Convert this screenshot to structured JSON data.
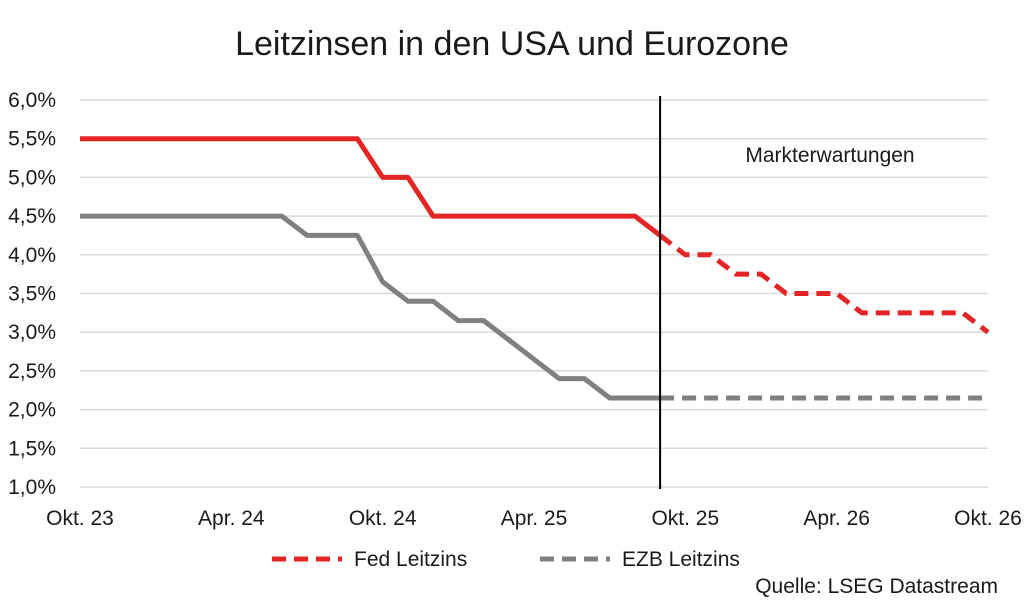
{
  "chart_data": {
    "type": "line",
    "title": "Leitzinsen in den USA und Eurozone",
    "xlabel": "",
    "ylabel": "",
    "x_ticks": [
      "Okt. 23",
      "Apr. 24",
      "Okt. 24",
      "Apr. 25",
      "Okt. 25",
      "Apr. 26",
      "Okt. 26"
    ],
    "y_ticks": [
      "1,0%",
      "1,5%",
      "2,0%",
      "2,5%",
      "3,0%",
      "3,5%",
      "4,0%",
      "4,5%",
      "5,0%",
      "5,5%",
      "6,0%"
    ],
    "ylim": [
      1.0,
      6.0
    ],
    "xlim": [
      "2023-10",
      "2026-10"
    ],
    "grid": "horizontal",
    "legend_position": "bottom",
    "annotation": {
      "label": "Markterwartungen",
      "x": "2025-09"
    },
    "series": [
      {
        "name": "Fed Leitzins",
        "color": "#e32526",
        "points": [
          {
            "x": "2023-10",
            "y": 5.5
          },
          {
            "x": "2024-09",
            "y": 5.5
          },
          {
            "x": "2024-10",
            "y": 5.0
          },
          {
            "x": "2024-11",
            "y": 5.0
          },
          {
            "x": "2024-12",
            "y": 4.5
          },
          {
            "x": "2025-08",
            "y": 4.5
          },
          {
            "x": "2025-09",
            "y": 4.25
          },
          {
            "x": "2025-10",
            "y": 4.0
          },
          {
            "x": "2025-11",
            "y": 4.0
          },
          {
            "x": "2025-12",
            "y": 3.75
          },
          {
            "x": "2026-01",
            "y": 3.75
          },
          {
            "x": "2026-02",
            "y": 3.5
          },
          {
            "x": "2026-04",
            "y": 3.5
          },
          {
            "x": "2026-05",
            "y": 3.25
          },
          {
            "x": "2026-09",
            "y": 3.25
          },
          {
            "x": "2026-10",
            "y": 3.0
          }
        ]
      },
      {
        "name": "EZB Leitzins",
        "color": "#808080",
        "points": [
          {
            "x": "2023-10",
            "y": 4.5
          },
          {
            "x": "2024-06",
            "y": 4.5
          },
          {
            "x": "2024-07",
            "y": 4.25
          },
          {
            "x": "2024-09",
            "y": 4.25
          },
          {
            "x": "2024-10",
            "y": 3.65
          },
          {
            "x": "2024-11",
            "y": 3.4
          },
          {
            "x": "2024-12",
            "y": 3.4
          },
          {
            "x": "2025-01",
            "y": 3.15
          },
          {
            "x": "2025-02",
            "y": 3.15
          },
          {
            "x": "2025-03",
            "y": 2.9
          },
          {
            "x": "2025-04",
            "y": 2.65
          },
          {
            "x": "2025-05",
            "y": 2.4
          },
          {
            "x": "2025-06",
            "y": 2.4
          },
          {
            "x": "2025-07",
            "y": 2.15
          },
          {
            "x": "2025-09",
            "y": 2.15
          },
          {
            "x": "2026-10",
            "y": 2.15
          }
        ]
      }
    ]
  },
  "source_text": "Quelle: LSEG Datastream"
}
